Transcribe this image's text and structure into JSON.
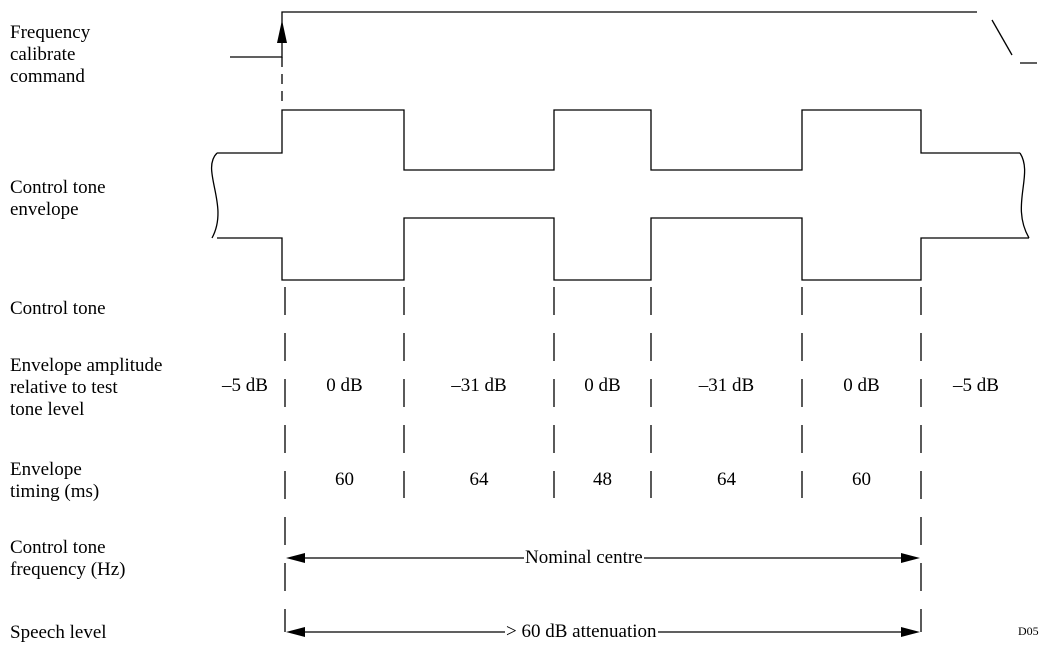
{
  "row_labels": {
    "frequency_calibrate_command": "Frequency\ncalibrate\ncommand",
    "control_tone_envelope": "Control tone\nenvelope",
    "control_tone": "Control tone",
    "envelope_amplitude": "Envelope amplitude\nrelative to test\ntone level",
    "envelope_timing": "Envelope\ntiming (ms)",
    "control_tone_frequency": "Control tone\nfrequency (Hz)",
    "speech_level": "Speech level"
  },
  "amplitudes": [
    "–5 dB",
    "0 dB",
    "–31 dB",
    "0 dB",
    "–31 dB",
    "0 dB",
    "–5 dB"
  ],
  "timings": [
    "60",
    "64",
    "48",
    "64",
    "60"
  ],
  "arrows": {
    "frequency": "Nominal centre",
    "speech": "> 60 dB attenuation"
  },
  "figure_code": "D05"
}
